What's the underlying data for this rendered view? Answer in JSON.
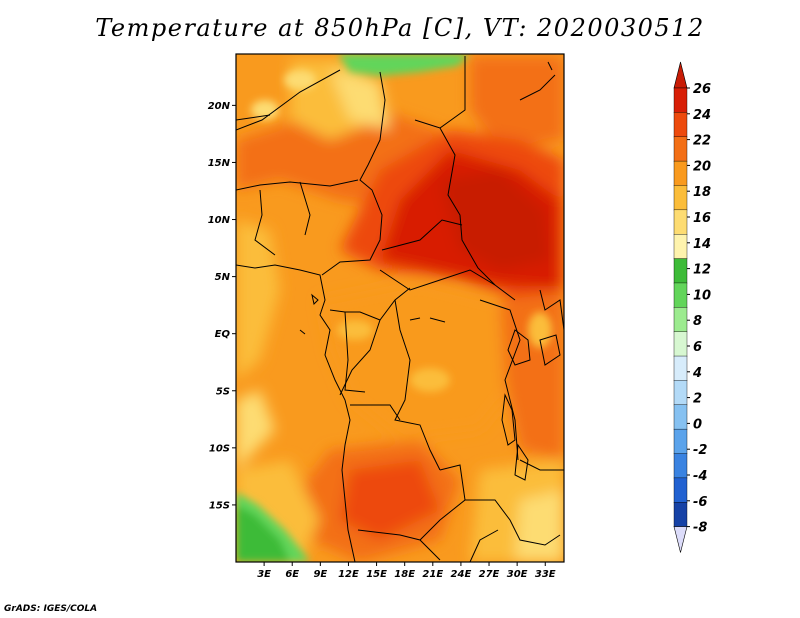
{
  "title": "Temperature at 850hPa [C], VT: 2020030512",
  "credit": "GrADS: IGES/COLA",
  "map": {
    "lat_labels": [
      "20N",
      "15N",
      "10N",
      "5N",
      "EQ",
      "5S",
      "10S",
      "15S"
    ],
    "lat_values": [
      20,
      15,
      10,
      5,
      0,
      -5,
      -10,
      -15
    ],
    "lon_labels": [
      "3E",
      "6E",
      "9E",
      "12E",
      "15E",
      "18E",
      "21E",
      "24E",
      "27E",
      "30E",
      "33E"
    ],
    "lon_values": [
      3,
      6,
      9,
      12,
      15,
      18,
      21,
      24,
      27,
      30,
      33
    ],
    "lat_range": [
      -20,
      24.5
    ],
    "lon_range": [
      0,
      35
    ],
    "field": "Temperature at 850hPa",
    "units": "C",
    "valid_time": "2020030512"
  },
  "colorbar": {
    "labels": [
      "26",
      "24",
      "22",
      "20",
      "18",
      "16",
      "14",
      "12",
      "10",
      "8",
      "6",
      "4",
      "2",
      "0",
      "-2",
      "-4",
      "-6",
      "-8"
    ],
    "colors": [
      "#b01000",
      "#d81e06",
      "#ed4a0d",
      "#f36f16",
      "#f99a1e",
      "#fbbd3a",
      "#fddc72",
      "#fef3ad",
      "#3dbb38",
      "#62d55a",
      "#9ceb8f",
      "#d7f7d1",
      "#d7ecfb",
      "#b3daf7",
      "#86c1f1",
      "#5ba3eb",
      "#3a83e1",
      "#2161d1",
      "#1642a6",
      "#0a1f75"
    ],
    "top_triangle_color": "#c81c06",
    "bottom_triangle_color": "#dcdcfa"
  }
}
